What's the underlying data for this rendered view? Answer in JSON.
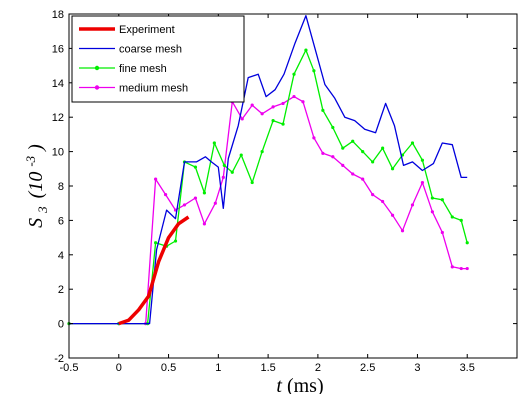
{
  "chart_data": {
    "type": "line",
    "xlabel": {
      "var": "t",
      "unit": "(ms)"
    },
    "ylabel": {
      "var": "S",
      "sub": "3",
      "pre": "(10",
      "sup": "-3",
      "post": ")"
    },
    "xlim": [
      -0.5,
      4
    ],
    "ylim": [
      -2,
      18
    ],
    "xticks": [
      -0.5,
      0,
      0.5,
      1,
      1.5,
      2,
      2.5,
      3,
      3.5
    ],
    "yticks": [
      -2,
      0,
      2,
      4,
      6,
      8,
      10,
      12,
      14,
      16,
      18
    ],
    "xtick_labels": [
      "-0.5",
      "0",
      "0.5",
      "1",
      "1.5",
      "2",
      "2.5",
      "3",
      "3.5"
    ],
    "ytick_labels": [
      "-2",
      "0",
      "2",
      "4",
      "6",
      "8",
      "10",
      "12",
      "14",
      "16",
      "18"
    ],
    "legend_position": "top-left",
    "series": [
      {
        "name": "Experiment",
        "color": "#ee0000",
        "marker": "none",
        "width": 3.5,
        "x": [
          0.0,
          0.1,
          0.2,
          0.3,
          0.4,
          0.5,
          0.6,
          0.7
        ],
        "y": [
          0.0,
          0.2,
          0.8,
          1.6,
          3.6,
          5.0,
          5.8,
          6.2
        ]
      },
      {
        "name": "coarse mesh",
        "color": "#0000dd",
        "marker": "none",
        "width": 1.3,
        "x": [
          -0.5,
          0.0,
          0.31,
          0.38,
          0.48,
          0.57,
          0.66,
          0.78,
          0.87,
          0.93,
          1.0,
          1.05,
          1.1,
          1.2,
          1.3,
          1.4,
          1.48,
          1.57,
          1.66,
          1.77,
          1.88,
          1.98,
          2.07,
          2.17,
          2.27,
          2.37,
          2.47,
          2.58,
          2.68,
          2.77,
          2.86,
          2.95,
          3.05,
          3.16,
          3.25,
          3.35,
          3.44,
          3.5
        ],
        "y": [
          0.0,
          0.0,
          0.0,
          4.3,
          6.6,
          6.1,
          9.4,
          9.4,
          9.7,
          9.4,
          9.1,
          6.7,
          9.6,
          11.5,
          14.3,
          14.5,
          13.2,
          13.6,
          14.5,
          16.3,
          17.9,
          15.8,
          13.9,
          13.1,
          12.0,
          11.8,
          11.3,
          11.1,
          12.8,
          11.5,
          9.2,
          9.4,
          8.9,
          9.3,
          10.5,
          10.4,
          8.5,
          8.5
        ]
      },
      {
        "name": "fine mesh",
        "color": "#00ee00",
        "marker": "dot",
        "width": 1.3,
        "x": [
          -0.5,
          0.0,
          0.29,
          0.37,
          0.48,
          0.57,
          0.66,
          0.77,
          0.86,
          0.96,
          1.06,
          1.14,
          1.23,
          1.34,
          1.44,
          1.55,
          1.65,
          1.76,
          1.88,
          1.96,
          2.05,
          2.15,
          2.25,
          2.35,
          2.45,
          2.55,
          2.65,
          2.75,
          2.85,
          2.95,
          3.05,
          3.15,
          3.25,
          3.35,
          3.44,
          3.5
        ],
        "y": [
          0.0,
          0.0,
          0.0,
          4.7,
          4.5,
          4.8,
          9.4,
          9.1,
          7.6,
          10.5,
          9.2,
          8.8,
          9.8,
          8.2,
          10.0,
          11.8,
          11.6,
          14.5,
          15.9,
          14.7,
          12.4,
          11.4,
          10.2,
          10.6,
          10.0,
          9.4,
          10.2,
          9.0,
          9.8,
          10.5,
          9.5,
          7.3,
          7.2,
          6.2,
          6.0,
          4.7
        ]
      },
      {
        "name": "medium mesh",
        "color": "#ee00ee",
        "marker": "dot",
        "width": 1.3,
        "x": [
          -0.5,
          0.0,
          0.27,
          0.37,
          0.47,
          0.57,
          0.66,
          0.77,
          0.86,
          0.97,
          1.05,
          1.14,
          1.24,
          1.34,
          1.44,
          1.55,
          1.65,
          1.76,
          1.85,
          1.96,
          2.05,
          2.15,
          2.25,
          2.35,
          2.45,
          2.55,
          2.65,
          2.75,
          2.85,
          2.95,
          3.05,
          3.15,
          3.25,
          3.35,
          3.44,
          3.5
        ],
        "y": [
          0.0,
          0.0,
          0.0,
          8.4,
          7.5,
          6.6,
          6.9,
          7.3,
          5.8,
          7.0,
          8.5,
          12.9,
          11.9,
          12.7,
          12.2,
          12.6,
          12.8,
          13.2,
          12.9,
          10.8,
          9.9,
          9.7,
          9.2,
          8.7,
          8.4,
          7.5,
          7.1,
          6.3,
          5.4,
          6.9,
          8.2,
          6.5,
          5.3,
          3.3,
          3.2,
          3.2
        ]
      }
    ]
  }
}
